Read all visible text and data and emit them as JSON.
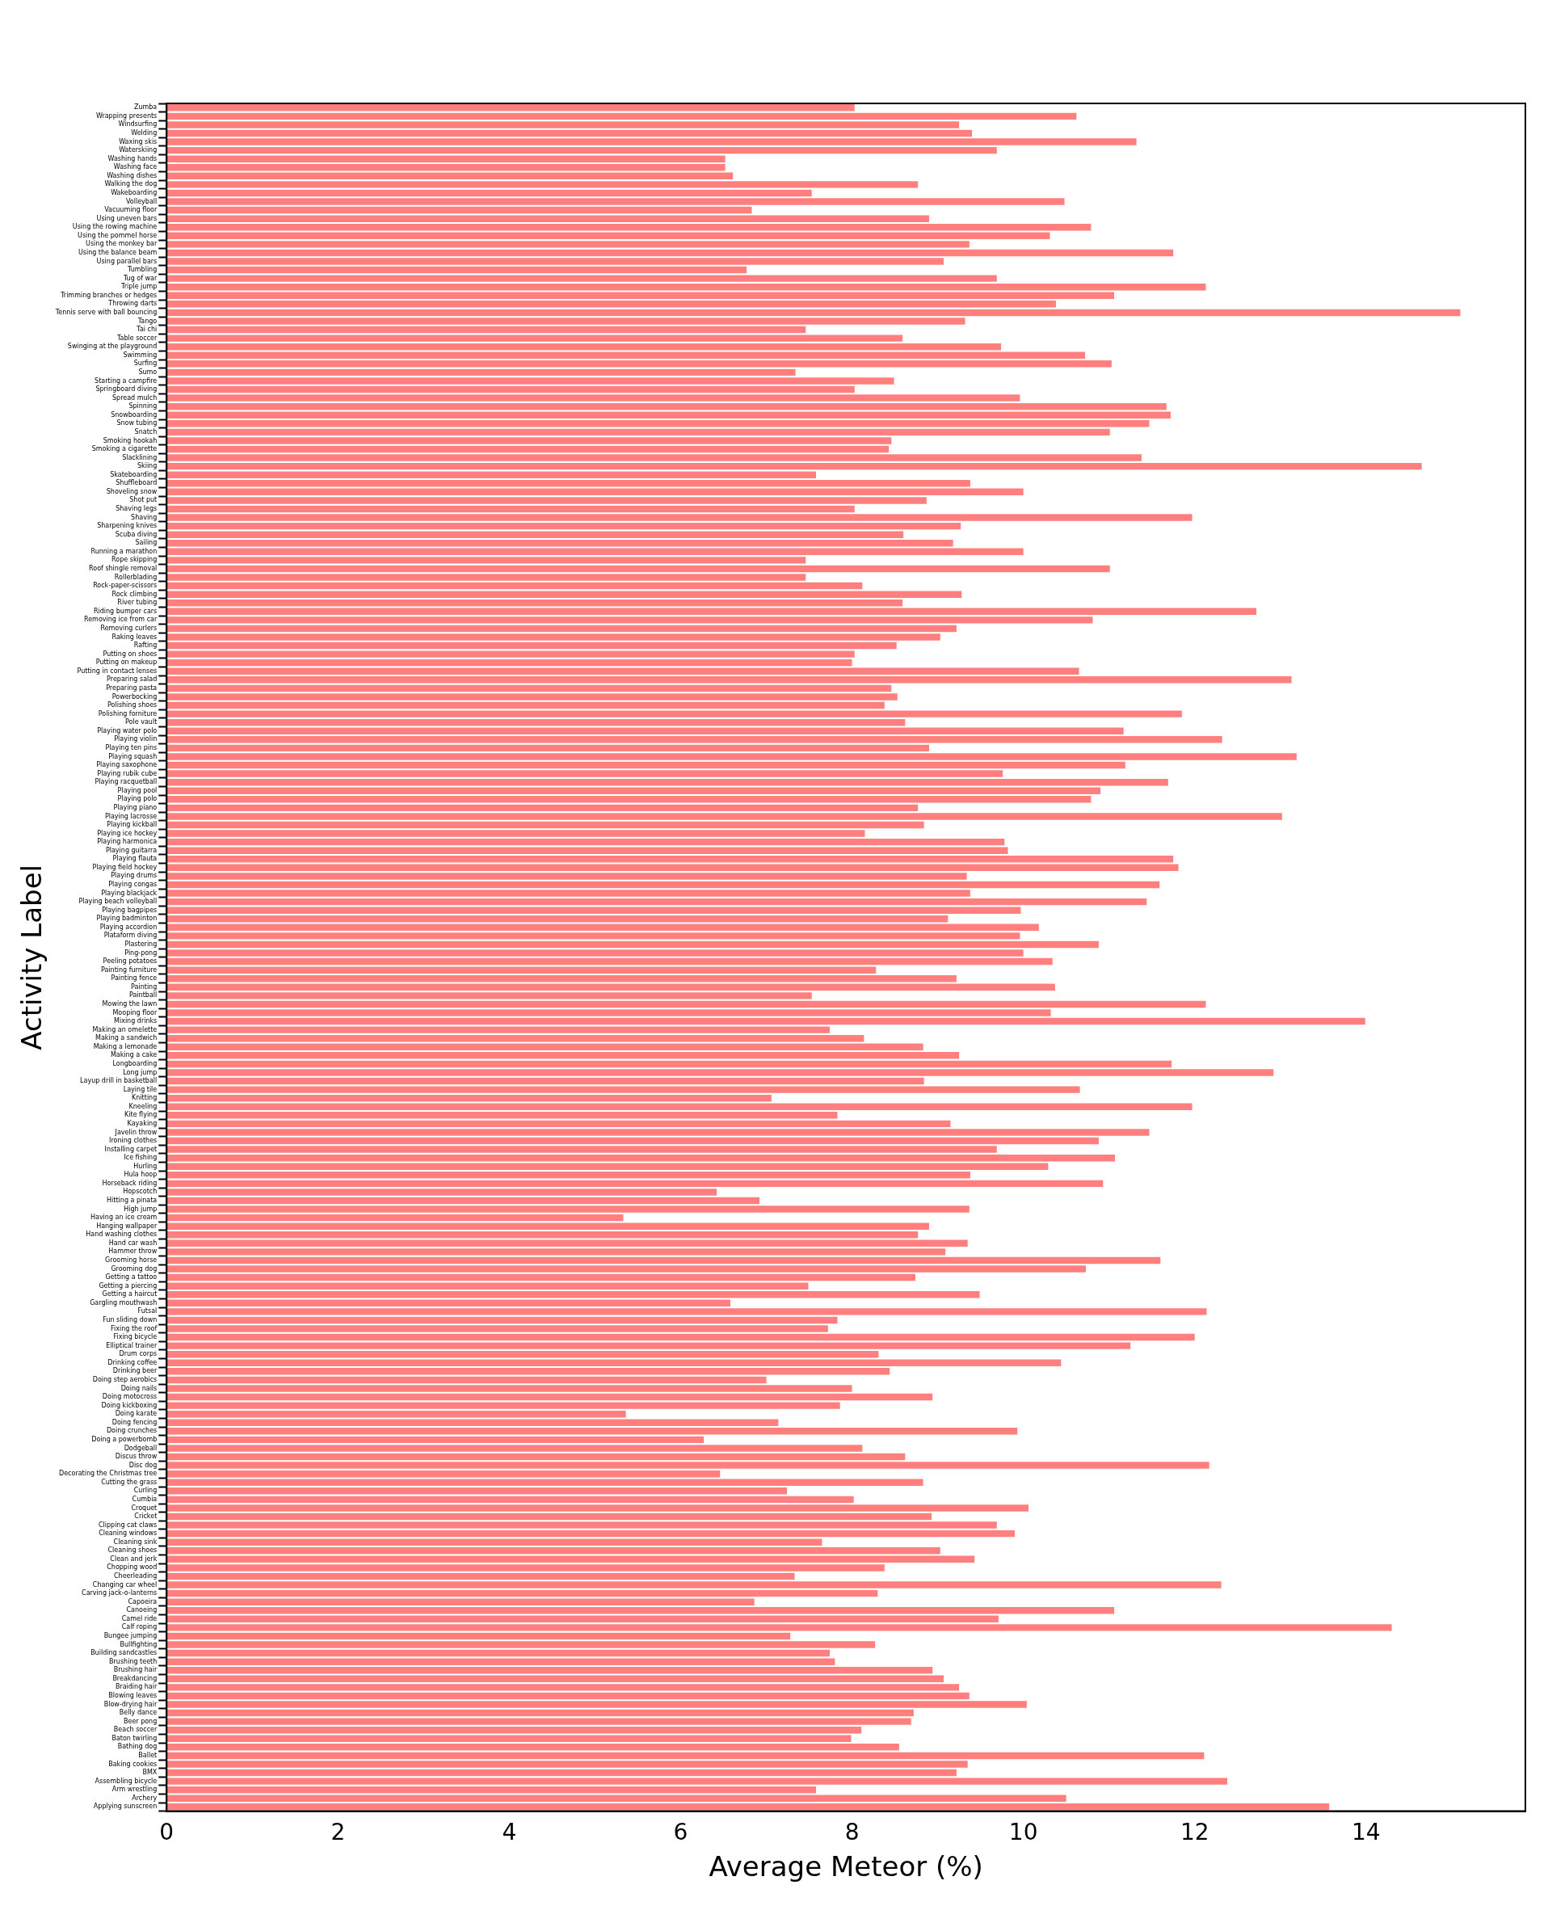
{
  "chart_data": {
    "type": "bar",
    "orientation": "horizontal",
    "xlabel": "Average Meteor (%)",
    "ylabel": "Activity Label",
    "color": "#ff7f7f",
    "xlim": [
      0,
      15.86
    ],
    "xticks": [
      0,
      2,
      4,
      6,
      8,
      10,
      12,
      14
    ],
    "grid": false,
    "legend": false,
    "categories": [
      "Zumba",
      "Wrapping presents",
      "Windsurfing",
      "Welding",
      "Waxing skis",
      "Waterskiing",
      "Washing hands",
      "Washing face",
      "Washing dishes",
      "Walking the dog",
      "Wakeboarding",
      "Volleyball",
      "Vacuuming floor",
      "Using uneven bars",
      "Using the rowing machine",
      "Using the pommel horse",
      "Using the monkey bar",
      "Using the balance beam",
      "Using parallel bars",
      "Tumbling",
      "Tug of war",
      "Triple jump",
      "Trimming branches or hedges",
      "Throwing darts",
      "Tennis serve with ball bouncing",
      "Tango",
      "Tai chi",
      "Table soccer",
      "Swinging at the playground",
      "Swimming",
      "Surfing",
      "Sumo",
      "Starting a campfire",
      "Springboard diving",
      "Spread mulch",
      "Spinning",
      "Snowboarding",
      "Snow tubing",
      "Snatch",
      "Smoking hookah",
      "Smoking a cigarette",
      "Slacklining",
      "Skiing",
      "Skateboarding",
      "Shuffleboard",
      "Shoveling snow",
      "Shot put",
      "Shaving legs",
      "Shaving",
      "Sharpening knives",
      "Scuba diving",
      "Sailing",
      "Running a marathon",
      "Rope skipping",
      "Roof shingle removal",
      "Rollerblading",
      "Rock-paper-scissors",
      "Rock climbing",
      "River tubing",
      "Riding bumper cars",
      "Removing ice from car",
      "Removing curlers",
      "Raking leaves",
      "Rafting",
      "Putting on shoes",
      "Putting on makeup",
      "Putting in contact lenses",
      "Preparing salad",
      "Preparing pasta",
      "Powerbocking",
      "Polishing shoes",
      "Polishing forniture",
      "Pole vault",
      "Playing water polo",
      "Playing violin",
      "Playing ten pins",
      "Playing squash",
      "Playing saxophone",
      "Playing rubik cube",
      "Playing racquetball",
      "Playing pool",
      "Playing polo",
      "Playing piano",
      "Playing lacrosse",
      "Playing kickball",
      "Playing ice hockey",
      "Playing harmonica",
      "Playing guitarra",
      "Playing flauta",
      "Playing field hockey",
      "Playing drums",
      "Playing congas",
      "Playing blackjack",
      "Playing beach volleyball",
      "Playing bagpipes",
      "Playing badminton",
      "Playing accordion",
      "Plataform diving",
      "Plastering",
      "Ping-pong",
      "Peeling potatoes",
      "Painting furniture",
      "Painting fence",
      "Painting",
      "Paintball",
      "Mowing the lawn",
      "Mooping floor",
      "Mixing drinks",
      "Making an omelette",
      "Making a sandwich",
      "Making a lemonade",
      "Making a cake",
      "Longboarding",
      "Long jump",
      "Layup drill in basketball",
      "Laying tile",
      "Knitting",
      "Kneeling",
      "Kite flying",
      "Kayaking",
      "Javelin throw",
      "Ironing clothes",
      "Installing carpet",
      "Ice fishing",
      "Hurling",
      "Hula hoop",
      "Horseback riding",
      "Hopscotch",
      "Hitting a pinata",
      "High jump",
      "Having an ice cream",
      "Hanging wallpaper",
      "Hand washing clothes",
      "Hand car wash",
      "Hammer throw",
      "Grooming horse",
      "Grooming dog",
      "Getting a tattoo",
      "Getting a piercing",
      "Getting a haircut",
      "Gargling mouthwash",
      "Futsal",
      "Fun sliding down",
      "Fixing the roof",
      "Fixing bicycle",
      "Elliptical trainer",
      "Drum corps",
      "Drinking coffee",
      "Drinking beer",
      "Doing step aerobics",
      "Doing nails",
      "Doing motocross",
      "Doing kickboxing",
      "Doing karate",
      "Doing fencing",
      "Doing crunches",
      "Doing a powerbomb",
      "Dodgeball",
      "Discus throw",
      "Disc dog",
      "Decorating the Christmas tree",
      "Cutting the grass",
      "Curling",
      "Cumbia",
      "Croquet",
      "Cricket",
      "Clipping cat claws",
      "Cleaning windows",
      "Cleaning sink",
      "Cleaning shoes",
      "Clean and jerk",
      "Chopping wood",
      "Cheerleading",
      "Changing car wheel",
      "Carving jack-o-lanterns",
      "Capoeira",
      "Canoeing",
      "Camel ride",
      "Calf roping",
      "Bungee jumping",
      "Bullfighting",
      "Building sandcastles",
      "Brushing teeth",
      "Brushing hair",
      "Breakdancing",
      "Braiding hair",
      "Blowing leaves",
      "Blow-drying hair",
      "Belly dance",
      "Beer pong",
      "Beach soccer",
      "Baton twirling",
      "Bathing dog",
      "Ballet",
      "Baking cookies",
      "BMX",
      "Assembling bicycle",
      "Arm wrestling",
      "Archery",
      "Applying sunscreen"
    ],
    "values": [
      8.03,
      10.62,
      9.25,
      9.4,
      11.32,
      9.69,
      6.52,
      6.52,
      6.61,
      8.77,
      7.53,
      10.48,
      6.83,
      8.9,
      10.79,
      10.31,
      9.37,
      11.75,
      9.07,
      6.77,
      9.69,
      12.13,
      11.06,
      10.38,
      15.1,
      9.32,
      7.46,
      8.59,
      9.74,
      10.72,
      11.03,
      7.34,
      8.49,
      8.03,
      9.96,
      11.67,
      11.72,
      11.47,
      11.01,
      8.46,
      8.43,
      11.38,
      14.65,
      7.58,
      9.38,
      10.0,
      8.87,
      8.03,
      11.97,
      9.27,
      8.6,
      9.18,
      10.0,
      7.46,
      11.01,
      7.46,
      8.12,
      9.28,
      8.59,
      12.72,
      10.81,
      9.22,
      9.03,
      8.52,
      8.03,
      8.0,
      10.65,
      13.13,
      8.46,
      8.53,
      8.38,
      11.85,
      8.62,
      11.17,
      12.32,
      8.9,
      13.19,
      11.19,
      9.76,
      11.69,
      10.9,
      10.79,
      8.77,
      13.02,
      8.84,
      8.15,
      9.78,
      9.82,
      11.75,
      11.81,
      9.34,
      11.59,
      9.38,
      11.44,
      9.97,
      9.12,
      10.18,
      9.96,
      10.88,
      10.0,
      10.34,
      8.28,
      9.22,
      10.37,
      7.53,
      12.13,
      10.32,
      13.99,
      7.74,
      8.14,
      8.83,
      9.25,
      11.73,
      12.92,
      8.84,
      10.66,
      7.06,
      11.97,
      7.83,
      9.15,
      11.47,
      10.88,
      9.69,
      11.07,
      10.29,
      9.38,
      10.93,
      6.42,
      6.92,
      9.37,
      5.33,
      8.9,
      8.77,
      9.35,
      9.09,
      11.6,
      10.73,
      8.74,
      7.49,
      9.49,
      6.58,
      12.14,
      7.83,
      7.72,
      12.0,
      11.25,
      8.31,
      10.44,
      8.44,
      7.0,
      8.0,
      8.94,
      7.86,
      5.36,
      7.14,
      9.93,
      6.27,
      8.12,
      8.62,
      12.17,
      6.46,
      8.83,
      7.24,
      8.02,
      10.06,
      8.93,
      9.69,
      9.9,
      7.65,
      9.03,
      9.43,
      8.38,
      7.33,
      12.31,
      8.3,
      6.86,
      11.06,
      9.71,
      14.3,
      7.28,
      8.27,
      7.74,
      7.8,
      8.94,
      9.07,
      9.25,
      9.37,
      10.04,
      8.72,
      8.69,
      8.11,
      7.99,
      8.55,
      12.11,
      9.35,
      9.22,
      12.38,
      7.58,
      10.5,
      13.57
    ]
  }
}
